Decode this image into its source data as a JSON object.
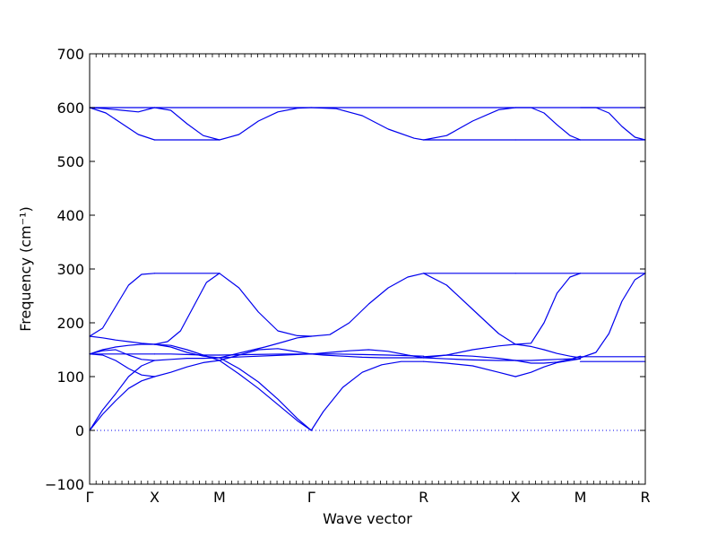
{
  "chart_data": {
    "type": "line",
    "title": "",
    "xlabel": "Wave vector",
    "ylabel": "Frequency (cm⁻¹)",
    "ylim": [
      -100,
      700
    ],
    "yticks": [
      -100,
      0,
      100,
      200,
      300,
      400,
      500,
      600,
      700
    ],
    "grid": false,
    "legend": "none",
    "line_color": "#0000ee",
    "zero_line": {
      "y": 0,
      "style": "dotted"
    },
    "x_points": [
      {
        "label": "Γ",
        "pos": 0.0
      },
      {
        "label": "X",
        "pos": 1.0
      },
      {
        "label": "M",
        "pos": 2.0
      },
      {
        "label": "Γ",
        "pos": 3.414
      },
      {
        "label": "R",
        "pos": 5.146
      },
      {
        "label": "X",
        "pos": 6.56
      },
      {
        "label": "M",
        "pos": 7.56
      },
      {
        "label": "R",
        "pos": 8.56
      }
    ],
    "series": [
      {
        "x": [
          0,
          0.2,
          0.4,
          0.6,
          0.8,
          1.0
        ],
        "y": [
          0,
          30,
          55,
          78,
          92,
          100
        ]
      },
      {
        "x": [
          0,
          0.2,
          0.4,
          0.6,
          0.8,
          1.0
        ],
        "y": [
          0,
          38,
          68,
          100,
          120,
          130
        ]
      },
      {
        "x": [
          0,
          0.2,
          0.4,
          0.6,
          0.8,
          1.0
        ],
        "y": [
          142,
          140,
          130,
          115,
          103,
          100
        ]
      },
      {
        "x": [
          0,
          0.2,
          0.4,
          0.6,
          0.8,
          1.0
        ],
        "y": [
          142,
          148,
          150,
          140,
          132,
          130
        ]
      },
      {
        "x": [
          0,
          0.2,
          0.4,
          0.6,
          0.8,
          1.0
        ],
        "y": [
          142,
          150,
          155,
          158,
          160,
          160
        ]
      },
      {
        "x": [
          0,
          0.2,
          0.4,
          0.6,
          0.8,
          1.0
        ],
        "y": [
          142,
          142,
          142,
          142,
          142,
          142
        ]
      },
      {
        "x": [
          0,
          0.2,
          0.4,
          0.6,
          0.8,
          1.0
        ],
        "y": [
          175,
          172,
          168,
          165,
          162,
          160
        ]
      },
      {
        "x": [
          0,
          0.2,
          0.4,
          0.6,
          0.8,
          1.0
        ],
        "y": [
          175,
          190,
          230,
          270,
          290,
          292
        ]
      },
      {
        "x": [
          1.0,
          1.25,
          1.5,
          1.75,
          2.0
        ],
        "y": [
          100,
          108,
          118,
          126,
          130
        ]
      },
      {
        "x": [
          1.0,
          1.25,
          1.5,
          1.75,
          2.0
        ],
        "y": [
          130,
          132,
          134,
          134,
          135
        ]
      },
      {
        "x": [
          1.0,
          1.25,
          1.5,
          1.75,
          2.0
        ],
        "y": [
          160,
          155,
          145,
          138,
          135
        ]
      },
      {
        "x": [
          1.0,
          1.25,
          1.5,
          1.75,
          2.0
        ],
        "y": [
          142,
          142,
          141,
          140,
          140
        ]
      },
      {
        "x": [
          1.0,
          1.25,
          1.5,
          1.75,
          2.0
        ],
        "y": [
          160,
          158,
          150,
          140,
          130
        ]
      },
      {
        "x": [
          1.0,
          1.2,
          1.4,
          1.6,
          1.8,
          2.0
        ],
        "y": [
          160,
          165,
          185,
          230,
          275,
          292
        ]
      },
      {
        "x": [
          1.0,
          1.5,
          2.0
        ],
        "y": [
          292,
          292,
          292
        ]
      },
      {
        "x": [
          2.0,
          2.3,
          2.6,
          2.9,
          3.2,
          3.414
        ],
        "y": [
          292,
          265,
          220,
          185,
          176,
          175
        ]
      },
      {
        "x": [
          2.0,
          2.35,
          2.7,
          3.0,
          3.2,
          3.414
        ],
        "y": [
          135,
          145,
          155,
          165,
          172,
          175
        ]
      },
      {
        "x": [
          2.0,
          2.3,
          2.6,
          2.9,
          3.2,
          3.414
        ],
        "y": [
          130,
          140,
          150,
          152,
          146,
          142
        ]
      },
      {
        "x": [
          2.0,
          2.4,
          2.8,
          3.2,
          3.414
        ],
        "y": [
          135,
          137,
          139,
          141,
          142
        ]
      },
      {
        "x": [
          2.0,
          2.5,
          3.0,
          3.414
        ],
        "y": [
          140,
          141,
          142,
          142
        ]
      },
      {
        "x": [
          2.0,
          2.3,
          2.6,
          2.9,
          3.2,
          3.414
        ],
        "y": [
          130,
          105,
          78,
          48,
          18,
          0
        ]
      },
      {
        "x": [
          2.0,
          2.3,
          2.6,
          2.9,
          3.2,
          3.414
        ],
        "y": [
          135,
          115,
          90,
          58,
          22,
          0
        ]
      },
      {
        "x": [
          3.414,
          3.6,
          3.9,
          4.2,
          4.5,
          4.8,
          5.146
        ],
        "y": [
          0,
          35,
          80,
          108,
          122,
          128,
          128
        ]
      },
      {
        "x": [
          3.414,
          3.6,
          3.9,
          4.2,
          4.5,
          4.8,
          5.146
        ],
        "y": [
          142,
          140,
          138,
          136,
          135,
          135,
          135
        ]
      },
      {
        "x": [
          3.414,
          3.7,
          4.0,
          4.3,
          4.6,
          4.9,
          5.146
        ],
        "y": [
          142,
          145,
          148,
          150,
          147,
          140,
          135
        ]
      },
      {
        "x": [
          3.414,
          3.8,
          4.2,
          4.6,
          5.146
        ],
        "y": [
          142,
          142,
          141,
          140,
          138
        ]
      },
      {
        "x": [
          3.414,
          3.7,
          4.0,
          4.3,
          4.6,
          4.9,
          5.146
        ],
        "y": [
          175,
          178,
          200,
          235,
          265,
          285,
          292
        ]
      },
      {
        "x": [
          5.146,
          5.5,
          5.9,
          6.3,
          6.56
        ],
        "y": [
          292,
          270,
          225,
          180,
          160
        ]
      },
      {
        "x": [
          5.146,
          5.5,
          5.9,
          6.3,
          6.56
        ],
        "y": [
          135,
          140,
          150,
          157,
          160
        ]
      },
      {
        "x": [
          5.146,
          5.5,
          5.9,
          6.3,
          6.56
        ],
        "y": [
          135,
          133,
          131,
          130,
          130
        ]
      },
      {
        "x": [
          5.146,
          5.5,
          5.9,
          6.3,
          6.56
        ],
        "y": [
          128,
          125,
          120,
          108,
          100
        ]
      },
      {
        "x": [
          5.146,
          5.5,
          5.9,
          6.3,
          6.56
        ],
        "y": [
          137,
          140,
          138,
          134,
          130
        ]
      },
      {
        "x": [
          5.146,
          5.8,
          6.56
        ],
        "y": [
          292,
          292,
          292
        ]
      },
      {
        "x": [
          6.56,
          6.8,
          7.0,
          7.2,
          7.4,
          7.56
        ],
        "y": [
          160,
          162,
          200,
          255,
          285,
          292
        ]
      },
      {
        "x": [
          6.56,
          6.8,
          7.0,
          7.2,
          7.4,
          7.56
        ],
        "y": [
          160,
          156,
          150,
          143,
          138,
          135
        ]
      },
      {
        "x": [
          6.56,
          6.8,
          7.0,
          7.2,
          7.4,
          7.56
        ],
        "y": [
          100,
          108,
          118,
          126,
          130,
          133
        ]
      },
      {
        "x": [
          6.56,
          6.8,
          7.0,
          7.2,
          7.4,
          7.56
        ],
        "y": [
          130,
          130,
          131,
          132,
          133,
          133
        ]
      },
      {
        "x": [
          6.56,
          6.8,
          7.0,
          7.2,
          7.4,
          7.56
        ],
        "y": [
          130,
          125,
          125,
          127,
          132,
          138
        ]
      },
      {
        "x": [
          6.56,
          7.0,
          7.56
        ],
        "y": [
          292,
          292,
          292
        ]
      },
      {
        "x": [
          7.56,
          7.8,
          8.0,
          8.2,
          8.4,
          8.56
        ],
        "y": [
          135,
          145,
          180,
          240,
          280,
          292
        ]
      },
      {
        "x": [
          7.56,
          8.0,
          8.56
        ],
        "y": [
          292,
          292,
          292
        ]
      },
      {
        "x": [
          7.56,
          8.0,
          8.56
        ],
        "y": [
          137,
          137,
          137
        ]
      },
      {
        "x": [
          7.56,
          8.0,
          8.56
        ],
        "y": [
          128,
          128,
          128
        ]
      },
      {
        "x": [
          0,
          0.5,
          1.0,
          1.5,
          2.0,
          2.7,
          3.414,
          4.28,
          5.146,
          5.85,
          6.56,
          7.06,
          7.56,
          8.06,
          8.56
        ],
        "y": [
          600,
          600,
          600,
          600,
          600,
          600,
          600,
          600,
          600,
          600,
          600,
          600,
          600,
          600,
          600
        ]
      },
      {
        "x": [
          0,
          0.25,
          0.5,
          0.75,
          1.0
        ],
        "y": [
          600,
          590,
          570,
          550,
          540
        ]
      },
      {
        "x": [
          0,
          0.25,
          0.5,
          0.75,
          1.0
        ],
        "y": [
          600,
          598,
          595,
          592,
          600
        ]
      },
      {
        "x": [
          1.0,
          1.25,
          1.5,
          1.75,
          2.0
        ],
        "y": [
          600,
          595,
          570,
          548,
          540
        ]
      },
      {
        "x": [
          1.0,
          1.5,
          2.0
        ],
        "y": [
          540,
          540,
          540
        ]
      },
      {
        "x": [
          2.0,
          2.3,
          2.6,
          2.9,
          3.2,
          3.414
        ],
        "y": [
          540,
          550,
          575,
          592,
          599,
          600
        ]
      },
      {
        "x": [
          3.414,
          3.8,
          4.2,
          4.6,
          5.0,
          5.146
        ],
        "y": [
          600,
          598,
          585,
          560,
          543,
          540
        ]
      },
      {
        "x": [
          5.146,
          5.5,
          5.9,
          6.3,
          6.56
        ],
        "y": [
          540,
          548,
          575,
          596,
          600
        ]
      },
      {
        "x": [
          5.146,
          5.8,
          6.56
        ],
        "y": [
          540,
          540,
          540
        ]
      },
      {
        "x": [
          6.56,
          6.8,
          7.0,
          7.2,
          7.4,
          7.56
        ],
        "y": [
          600,
          600,
          590,
          568,
          548,
          540
        ]
      },
      {
        "x": [
          6.56,
          7.0,
          7.56
        ],
        "y": [
          540,
          540,
          540
        ]
      },
      {
        "x": [
          7.56,
          7.8,
          8.0,
          8.2,
          8.4,
          8.56
        ],
        "y": [
          600,
          600,
          590,
          565,
          545,
          540
        ]
      },
      {
        "x": [
          7.56,
          8.0,
          8.56
        ],
        "y": [
          540,
          540,
          540
        ]
      }
    ]
  }
}
